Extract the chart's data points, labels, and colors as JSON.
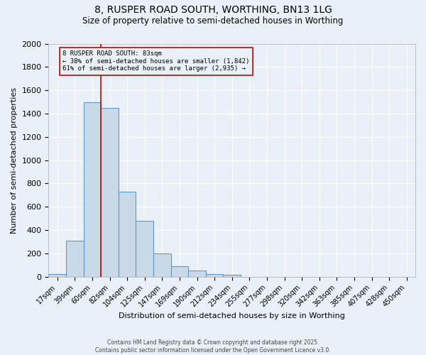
{
  "title_line1": "8, RUSPER ROAD SOUTH, WORTHING, BN13 1LG",
  "title_line2": "Size of property relative to semi-detached houses in Worthing",
  "xlabel": "Distribution of semi-detached houses by size in Worthing",
  "ylabel": "Number of semi-detached properties",
  "categories": [
    "17sqm",
    "39sqm",
    "60sqm",
    "82sqm",
    "104sqm",
    "125sqm",
    "147sqm",
    "169sqm",
    "190sqm",
    "212sqm",
    "234sqm",
    "255sqm",
    "277sqm",
    "298sqm",
    "320sqm",
    "342sqm",
    "363sqm",
    "385sqm",
    "407sqm",
    "428sqm",
    "450sqm"
  ],
  "values": [
    20,
    310,
    1500,
    1450,
    730,
    480,
    200,
    90,
    55,
    20,
    15,
    0,
    0,
    0,
    0,
    0,
    0,
    0,
    0,
    0,
    0
  ],
  "bar_color": "#c9d9e8",
  "bar_edge_color": "#5b9bd5",
  "property_label": "8 RUSPER ROAD SOUTH: 83sqm",
  "pct_smaller": 38,
  "n_smaller": 1842,
  "pct_larger": 61,
  "n_larger": 2935,
  "red_line_bin": 3,
  "ylim": [
    0,
    2000
  ],
  "yticks": [
    0,
    200,
    400,
    600,
    800,
    1000,
    1200,
    1400,
    1600,
    1800,
    2000
  ],
  "bg_color": "#eaf0f8",
  "grid_color": "#ffffff",
  "annotation_box_color": "#cc0000",
  "footer_line1": "Contains HM Land Registry data © Crown copyright and database right 2025.",
  "footer_line2": "Contains public sector information licensed under the Open Government Licence v3.0."
}
